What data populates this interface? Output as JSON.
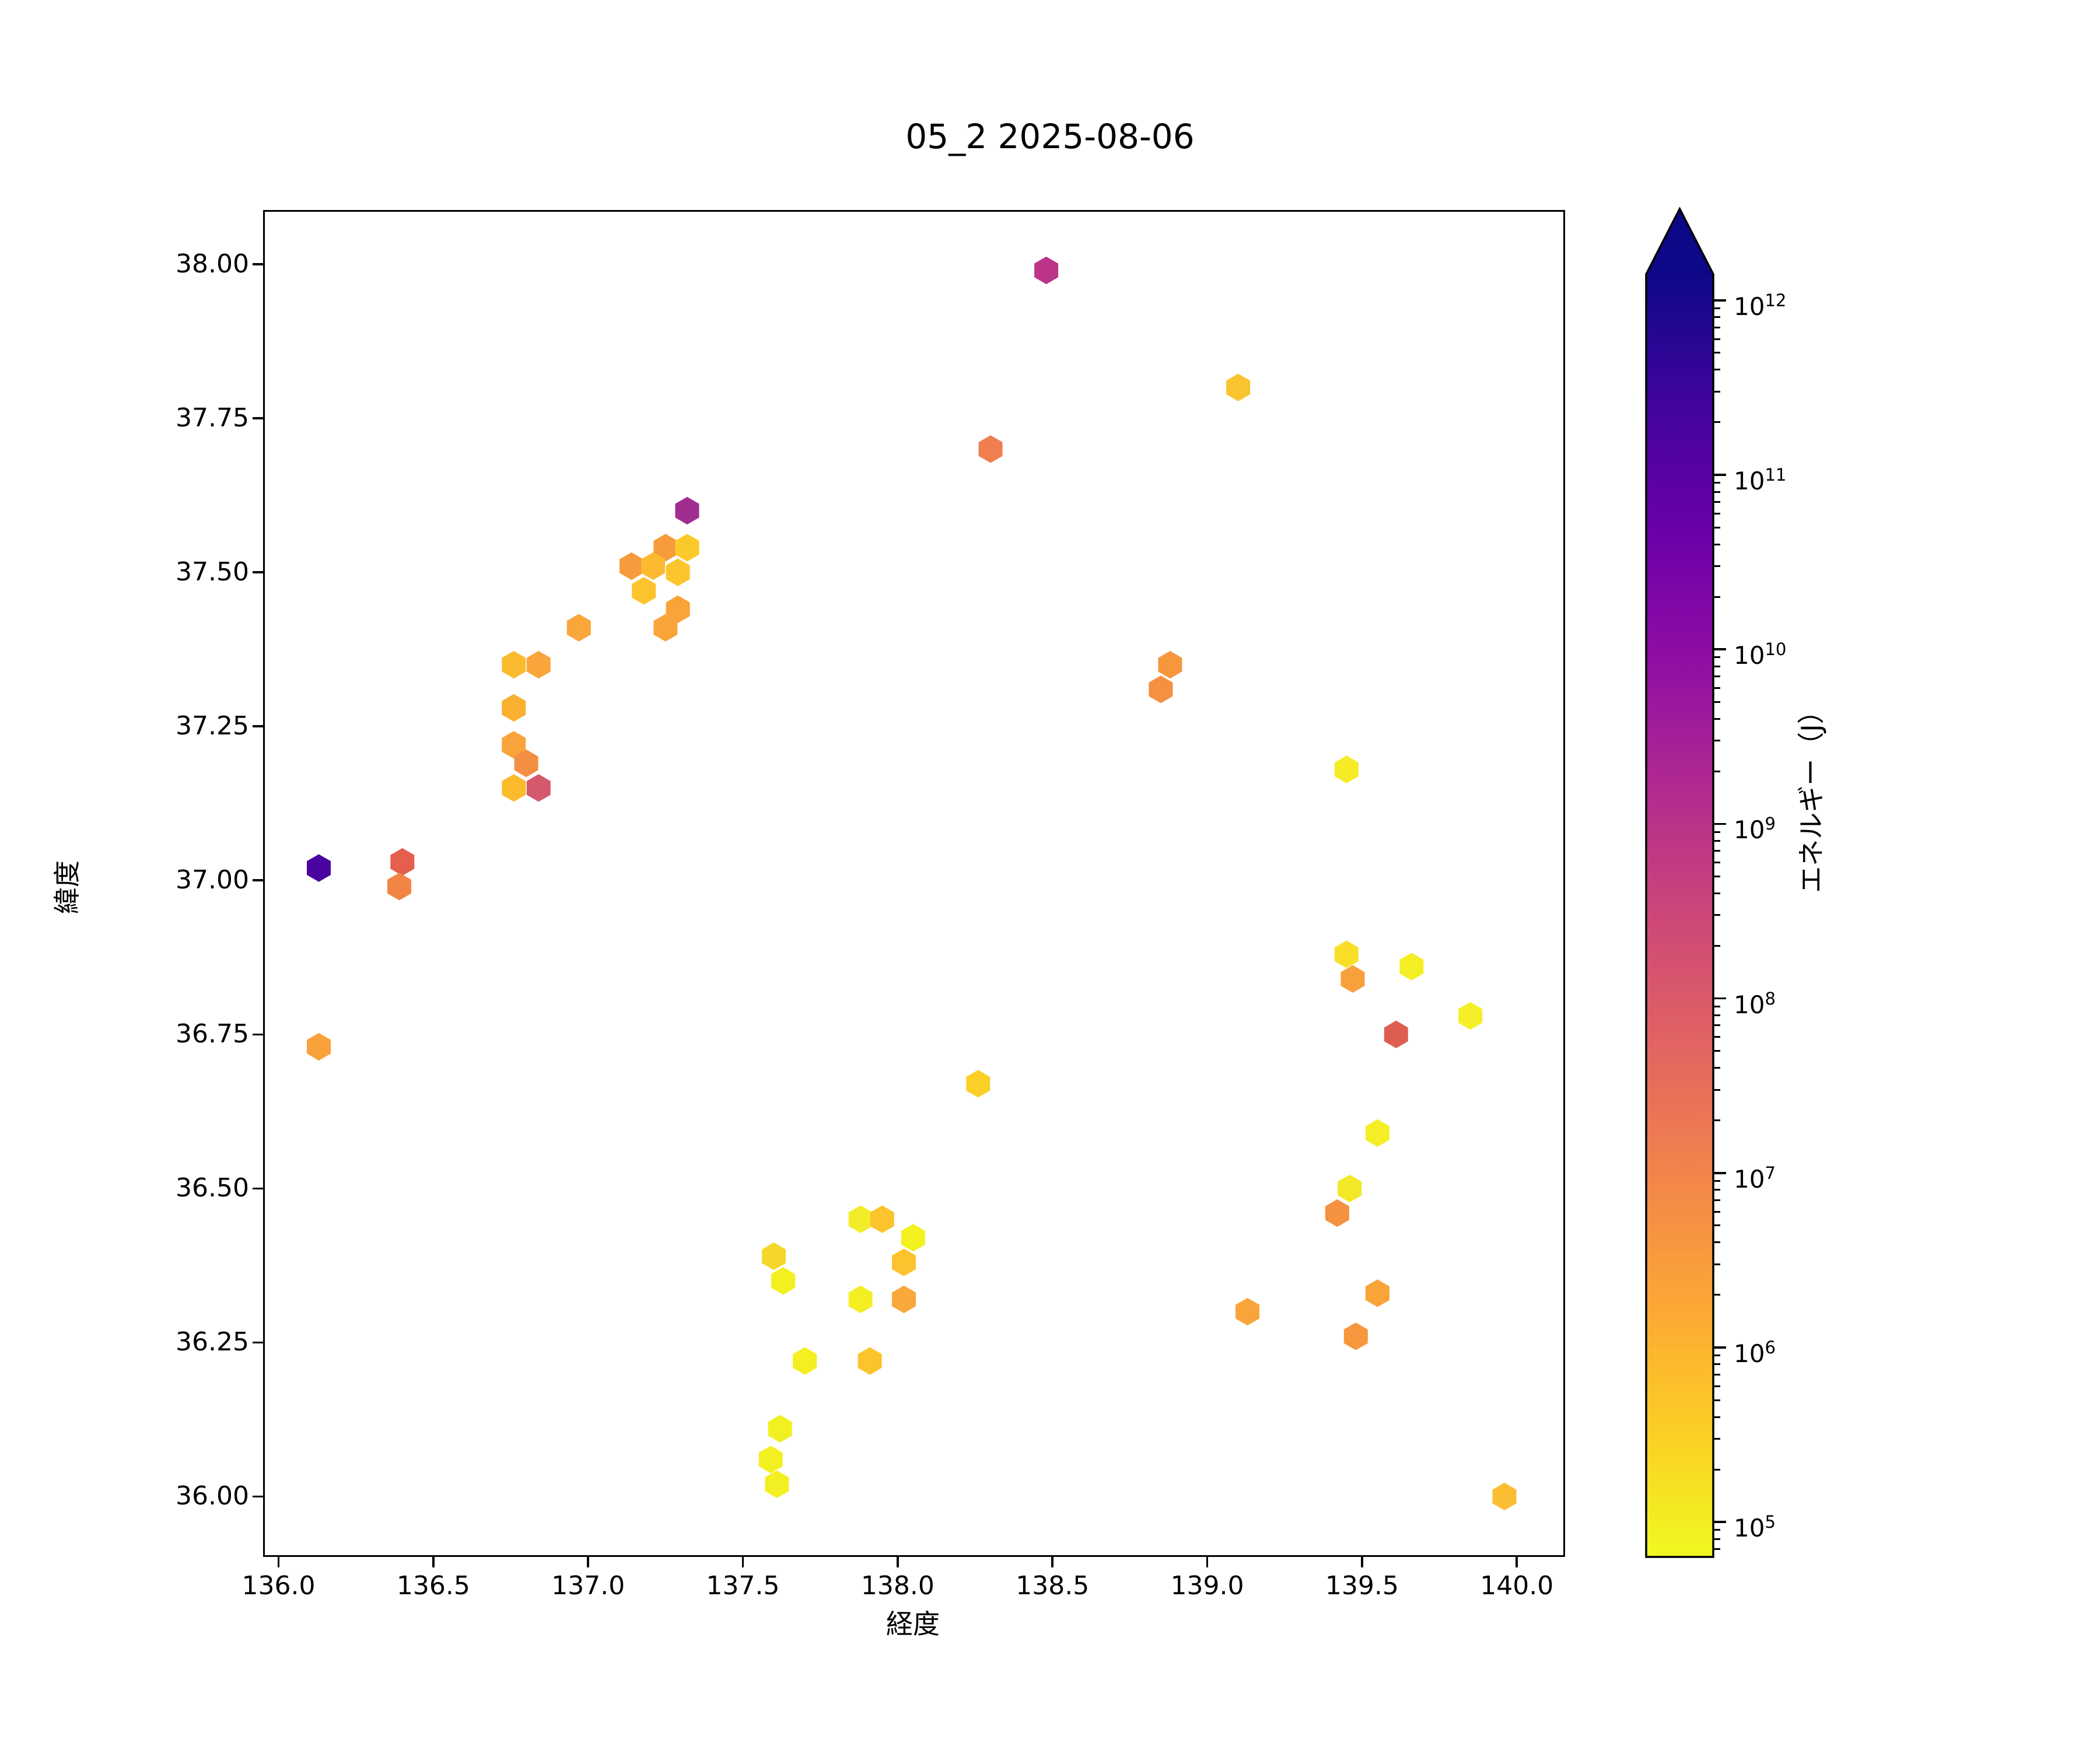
{
  "chart_data": {
    "type": "scatter",
    "marker": "hexagon",
    "title": "05_2 2025-08-06",
    "xlabel": "経度",
    "ylabel": "緯度",
    "xlim": [
      135.95,
      140.156
    ],
    "ylim": [
      35.902,
      38.088
    ],
    "grid": false,
    "xticks": {
      "values": [
        136.0,
        136.5,
        137.0,
        137.5,
        138.0,
        138.5,
        139.0,
        139.5,
        140.0
      ],
      "labels": [
        "136.0",
        "136.5",
        "137.0",
        "137.5",
        "138.0",
        "138.5",
        "139.0",
        "139.5",
        "140.0"
      ]
    },
    "yticks": {
      "values": [
        38.0,
        37.75,
        37.5,
        37.25,
        37.0,
        36.75,
        36.5,
        36.25,
        36.0
      ],
      "labels": [
        "38.00",
        "37.75",
        "37.50",
        "37.25",
        "37.00",
        "36.75",
        "36.50",
        "36.25",
        "36.00"
      ]
    },
    "colorbar": {
      "label": "エネルギー（J）",
      "scale": "log",
      "log_min": 4.8,
      "log_max": 12.15,
      "extend": "max",
      "colormap": "plasma_r",
      "arrow_color": "#0d0887",
      "gradient_stops_top_to_bottom": [
        "#0d0887",
        "#41049d",
        "#6a00a8",
        "#8f0da4",
        "#b12a90",
        "#cc4778",
        "#e16462",
        "#f2844b",
        "#fca636",
        "#fcce25",
        "#f0f921"
      ],
      "ticks": [
        {
          "exp": 12,
          "label": "10¹²"
        },
        {
          "exp": 11,
          "label": "10¹¹"
        },
        {
          "exp": 10,
          "label": "10¹⁰"
        },
        {
          "exp": 9,
          "label": "10⁹"
        },
        {
          "exp": 8,
          "label": "10⁸"
        },
        {
          "exp": 7,
          "label": "10⁷"
        },
        {
          "exp": 6,
          "label": "10⁶"
        },
        {
          "exp": 5,
          "label": "10⁵"
        }
      ]
    },
    "points": [
      {
        "lon": 138.48,
        "lat": 37.99,
        "energy_j": 500000000.0,
        "color": "#bb3488"
      },
      {
        "lon": 139.1,
        "lat": 37.8,
        "energy_j": 500000.0,
        "color": "#f9c42f"
      },
      {
        "lon": 138.3,
        "lat": 37.7,
        "energy_j": 10000000.0,
        "color": "#ef7e50"
      },
      {
        "lon": 137.32,
        "lat": 37.6,
        "energy_j": 2000000000.0,
        "color": "#a02d90"
      },
      {
        "lon": 137.25,
        "lat": 37.54,
        "energy_j": 2500000.0,
        "color": "#f79c3d"
      },
      {
        "lon": 137.32,
        "lat": 37.54,
        "energy_j": 500000.0,
        "color": "#fbc929"
      },
      {
        "lon": 137.14,
        "lat": 37.51,
        "energy_j": 2500000.0,
        "color": "#f79b3e"
      },
      {
        "lon": 137.21,
        "lat": 37.51,
        "energy_j": 1000000.0,
        "color": "#fbba30"
      },
      {
        "lon": 137.29,
        "lat": 37.5,
        "energy_j": 600000.0,
        "color": "#fbc52b"
      },
      {
        "lon": 137.18,
        "lat": 37.47,
        "energy_j": 700000.0,
        "color": "#fcc32c"
      },
      {
        "lon": 137.29,
        "lat": 37.44,
        "energy_j": 2000000.0,
        "color": "#f9a338"
      },
      {
        "lon": 137.25,
        "lat": 37.41,
        "energy_j": 1800000.0,
        "color": "#f9a53a"
      },
      {
        "lon": 136.97,
        "lat": 37.41,
        "energy_j": 1800000.0,
        "color": "#f9a63a"
      },
      {
        "lon": 136.76,
        "lat": 37.35,
        "energy_j": 1000000.0,
        "color": "#fbbb2e"
      },
      {
        "lon": 136.84,
        "lat": 37.35,
        "energy_j": 1800000.0,
        "color": "#f9a53b"
      },
      {
        "lon": 136.76,
        "lat": 37.28,
        "energy_j": 1400000.0,
        "color": "#fab031"
      },
      {
        "lon": 136.76,
        "lat": 37.22,
        "energy_j": 2000000.0,
        "color": "#f9a43a"
      },
      {
        "lon": 136.8,
        "lat": 37.19,
        "energy_j": 4000000.0,
        "color": "#f38f42"
      },
      {
        "lon": 136.76,
        "lat": 37.15,
        "energy_j": 1000000.0,
        "color": "#fbbb2c"
      },
      {
        "lon": 136.84,
        "lat": 37.15,
        "energy_j": 150000000.0,
        "color": "#d5596c"
      },
      {
        "lon": 136.13,
        "lat": 37.02,
        "energy_j": 200000000000.0,
        "color": "#4a03a0"
      },
      {
        "lon": 136.4,
        "lat": 37.03,
        "energy_j": 50000000.0,
        "color": "#e4604d"
      },
      {
        "lon": 136.39,
        "lat": 36.99,
        "energy_j": 6000000.0,
        "color": "#f28545"
      },
      {
        "lon": 136.13,
        "lat": 36.73,
        "energy_j": 2000000.0,
        "color": "#f9a13b"
      },
      {
        "lon": 139.45,
        "lat": 37.18,
        "energy_j": 150000.0,
        "color": "#f5ec27"
      },
      {
        "lon": 138.88,
        "lat": 37.35,
        "energy_j": 3000000.0,
        "color": "#f7973d"
      },
      {
        "lon": 138.85,
        "lat": 37.31,
        "energy_j": 4000000.0,
        "color": "#f49040"
      },
      {
        "lon": 139.45,
        "lat": 36.88,
        "energy_j": 300000.0,
        "color": "#f7df28"
      },
      {
        "lon": 139.47,
        "lat": 36.84,
        "energy_j": 2000000.0,
        "color": "#f8a13c"
      },
      {
        "lon": 139.66,
        "lat": 36.86,
        "energy_j": 120000.0,
        "color": "#f4ef25"
      },
      {
        "lon": 139.85,
        "lat": 36.78,
        "energy_j": 120000.0,
        "color": "#f4ef26"
      },
      {
        "lon": 139.61,
        "lat": 36.75,
        "energy_j": 80000000.0,
        "color": "#dd5e51"
      },
      {
        "lon": 139.55,
        "lat": 36.59,
        "energy_j": 120000.0,
        "color": "#f4ee26"
      },
      {
        "lon": 139.46,
        "lat": 36.5,
        "energy_j": 160000.0,
        "color": "#f2e828"
      },
      {
        "lon": 139.42,
        "lat": 36.46,
        "energy_j": 3500000.0,
        "color": "#f5923f"
      },
      {
        "lon": 139.55,
        "lat": 36.33,
        "energy_j": 2000000.0,
        "color": "#f9a438"
      },
      {
        "lon": 139.13,
        "lat": 36.3,
        "energy_j": 2000000.0,
        "color": "#f9a43b"
      },
      {
        "lon": 139.48,
        "lat": 36.26,
        "energy_j": 3000000.0,
        "color": "#f7973d"
      },
      {
        "lon": 139.96,
        "lat": 36.0,
        "energy_j": 900000.0,
        "color": "#fbbd32"
      },
      {
        "lon": 138.26,
        "lat": 36.67,
        "energy_j": 400000.0,
        "color": "#fad028"
      },
      {
        "lon": 137.88,
        "lat": 36.45,
        "energy_j": 140000.0,
        "color": "#f2ed28"
      },
      {
        "lon": 137.95,
        "lat": 36.45,
        "energy_j": 700000.0,
        "color": "#fbc42c"
      },
      {
        "lon": 138.05,
        "lat": 36.42,
        "energy_j": 100000.0,
        "color": "#f3f11f"
      },
      {
        "lon": 138.02,
        "lat": 36.38,
        "energy_j": 700000.0,
        "color": "#fbc32e"
      },
      {
        "lon": 137.6,
        "lat": 36.39,
        "energy_j": 350000.0,
        "color": "#f5d72b"
      },
      {
        "lon": 137.63,
        "lat": 36.35,
        "energy_j": 100000.0,
        "color": "#f3f01f"
      },
      {
        "lon": 137.88,
        "lat": 36.32,
        "energy_j": 110000.0,
        "color": "#f3ef22"
      },
      {
        "lon": 138.02,
        "lat": 36.32,
        "energy_j": 1700000.0,
        "color": "#f9a83a"
      },
      {
        "lon": 137.7,
        "lat": 36.22,
        "energy_j": 110000.0,
        "color": "#f3ef21"
      },
      {
        "lon": 137.91,
        "lat": 36.22,
        "energy_j": 700000.0,
        "color": "#fbc32c"
      },
      {
        "lon": 137.62,
        "lat": 36.11,
        "energy_j": 100000.0,
        "color": "#f2f020"
      },
      {
        "lon": 137.59,
        "lat": 36.06,
        "energy_j": 100000.0,
        "color": "#f2f021"
      },
      {
        "lon": 137.61,
        "lat": 36.02,
        "energy_j": 100000.0,
        "color": "#f2ef22"
      }
    ]
  }
}
